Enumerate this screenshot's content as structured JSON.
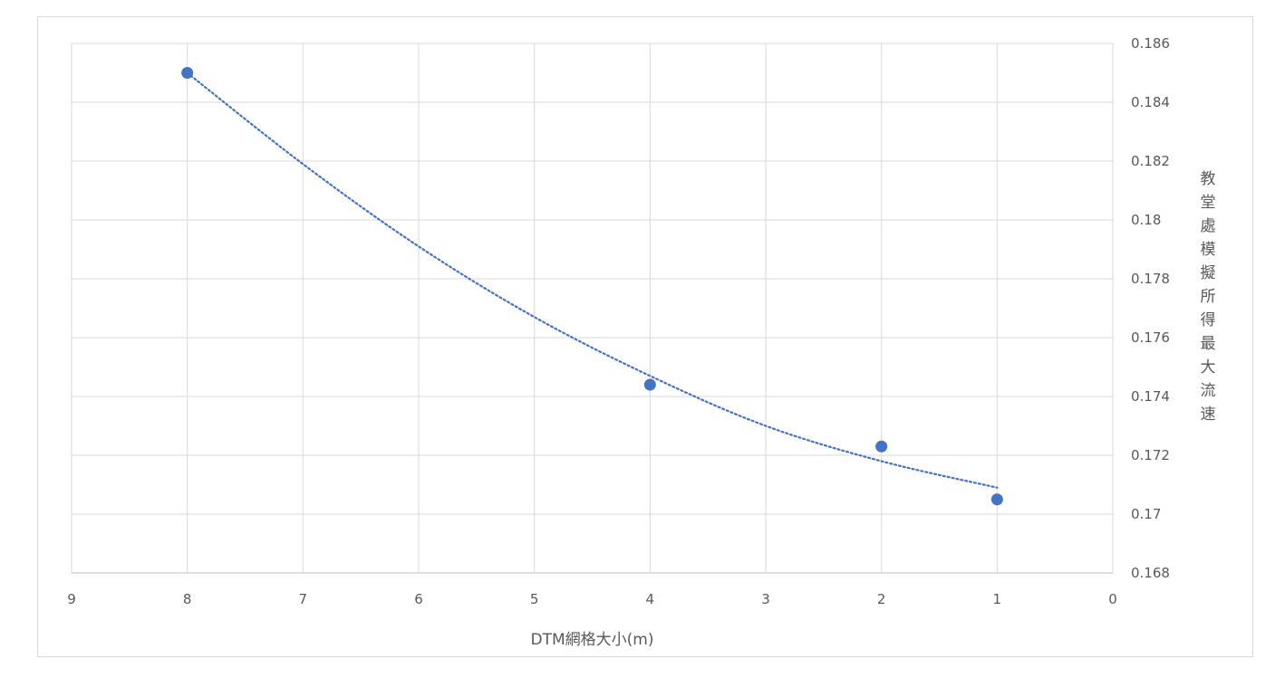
{
  "chart_data": {
    "type": "scatter",
    "title": "",
    "xlabel": "DTM網格大小(m)",
    "ylabel": "教堂處模擬所得最大流速",
    "x_reversed": true,
    "xlim": [
      0,
      9
    ],
    "ylim": [
      0.168,
      0.186
    ],
    "x_ticks": [
      9,
      8,
      7,
      6,
      5,
      4,
      3,
      2,
      1,
      0
    ],
    "y_ticks": [
      0.168,
      0.17,
      0.172,
      0.174,
      0.176,
      0.178,
      0.18,
      0.182,
      0.184,
      0.186
    ],
    "y_tick_labels": [
      "0.168",
      "0.17",
      "0.172",
      "0.174",
      "0.176",
      "0.178",
      "0.18",
      "0.182",
      "0.184",
      "0.186"
    ],
    "y_axis_position": "right",
    "grid": true,
    "legend": "none",
    "series": [
      {
        "points": [
          {
            "x": 8,
            "y": 0.185
          },
          {
            "x": 4,
            "y": 0.1744
          },
          {
            "x": 2,
            "y": 0.1723
          },
          {
            "x": 1,
            "y": 0.1705
          }
        ],
        "color": "#4472c4",
        "trendline": {
          "style": "dotted",
          "points": [
            {
              "x": 8,
              "y": 0.185
            },
            {
              "x": 7,
              "y": 0.1819
            },
            {
              "x": 6,
              "y": 0.1791
            },
            {
              "x": 5,
              "y": 0.1767
            },
            {
              "x": 4,
              "y": 0.1747
            },
            {
              "x": 3,
              "y": 0.173
            },
            {
              "x": 2,
              "y": 0.1718
            },
            {
              "x": 1,
              "y": 0.1709
            }
          ]
        }
      }
    ]
  }
}
